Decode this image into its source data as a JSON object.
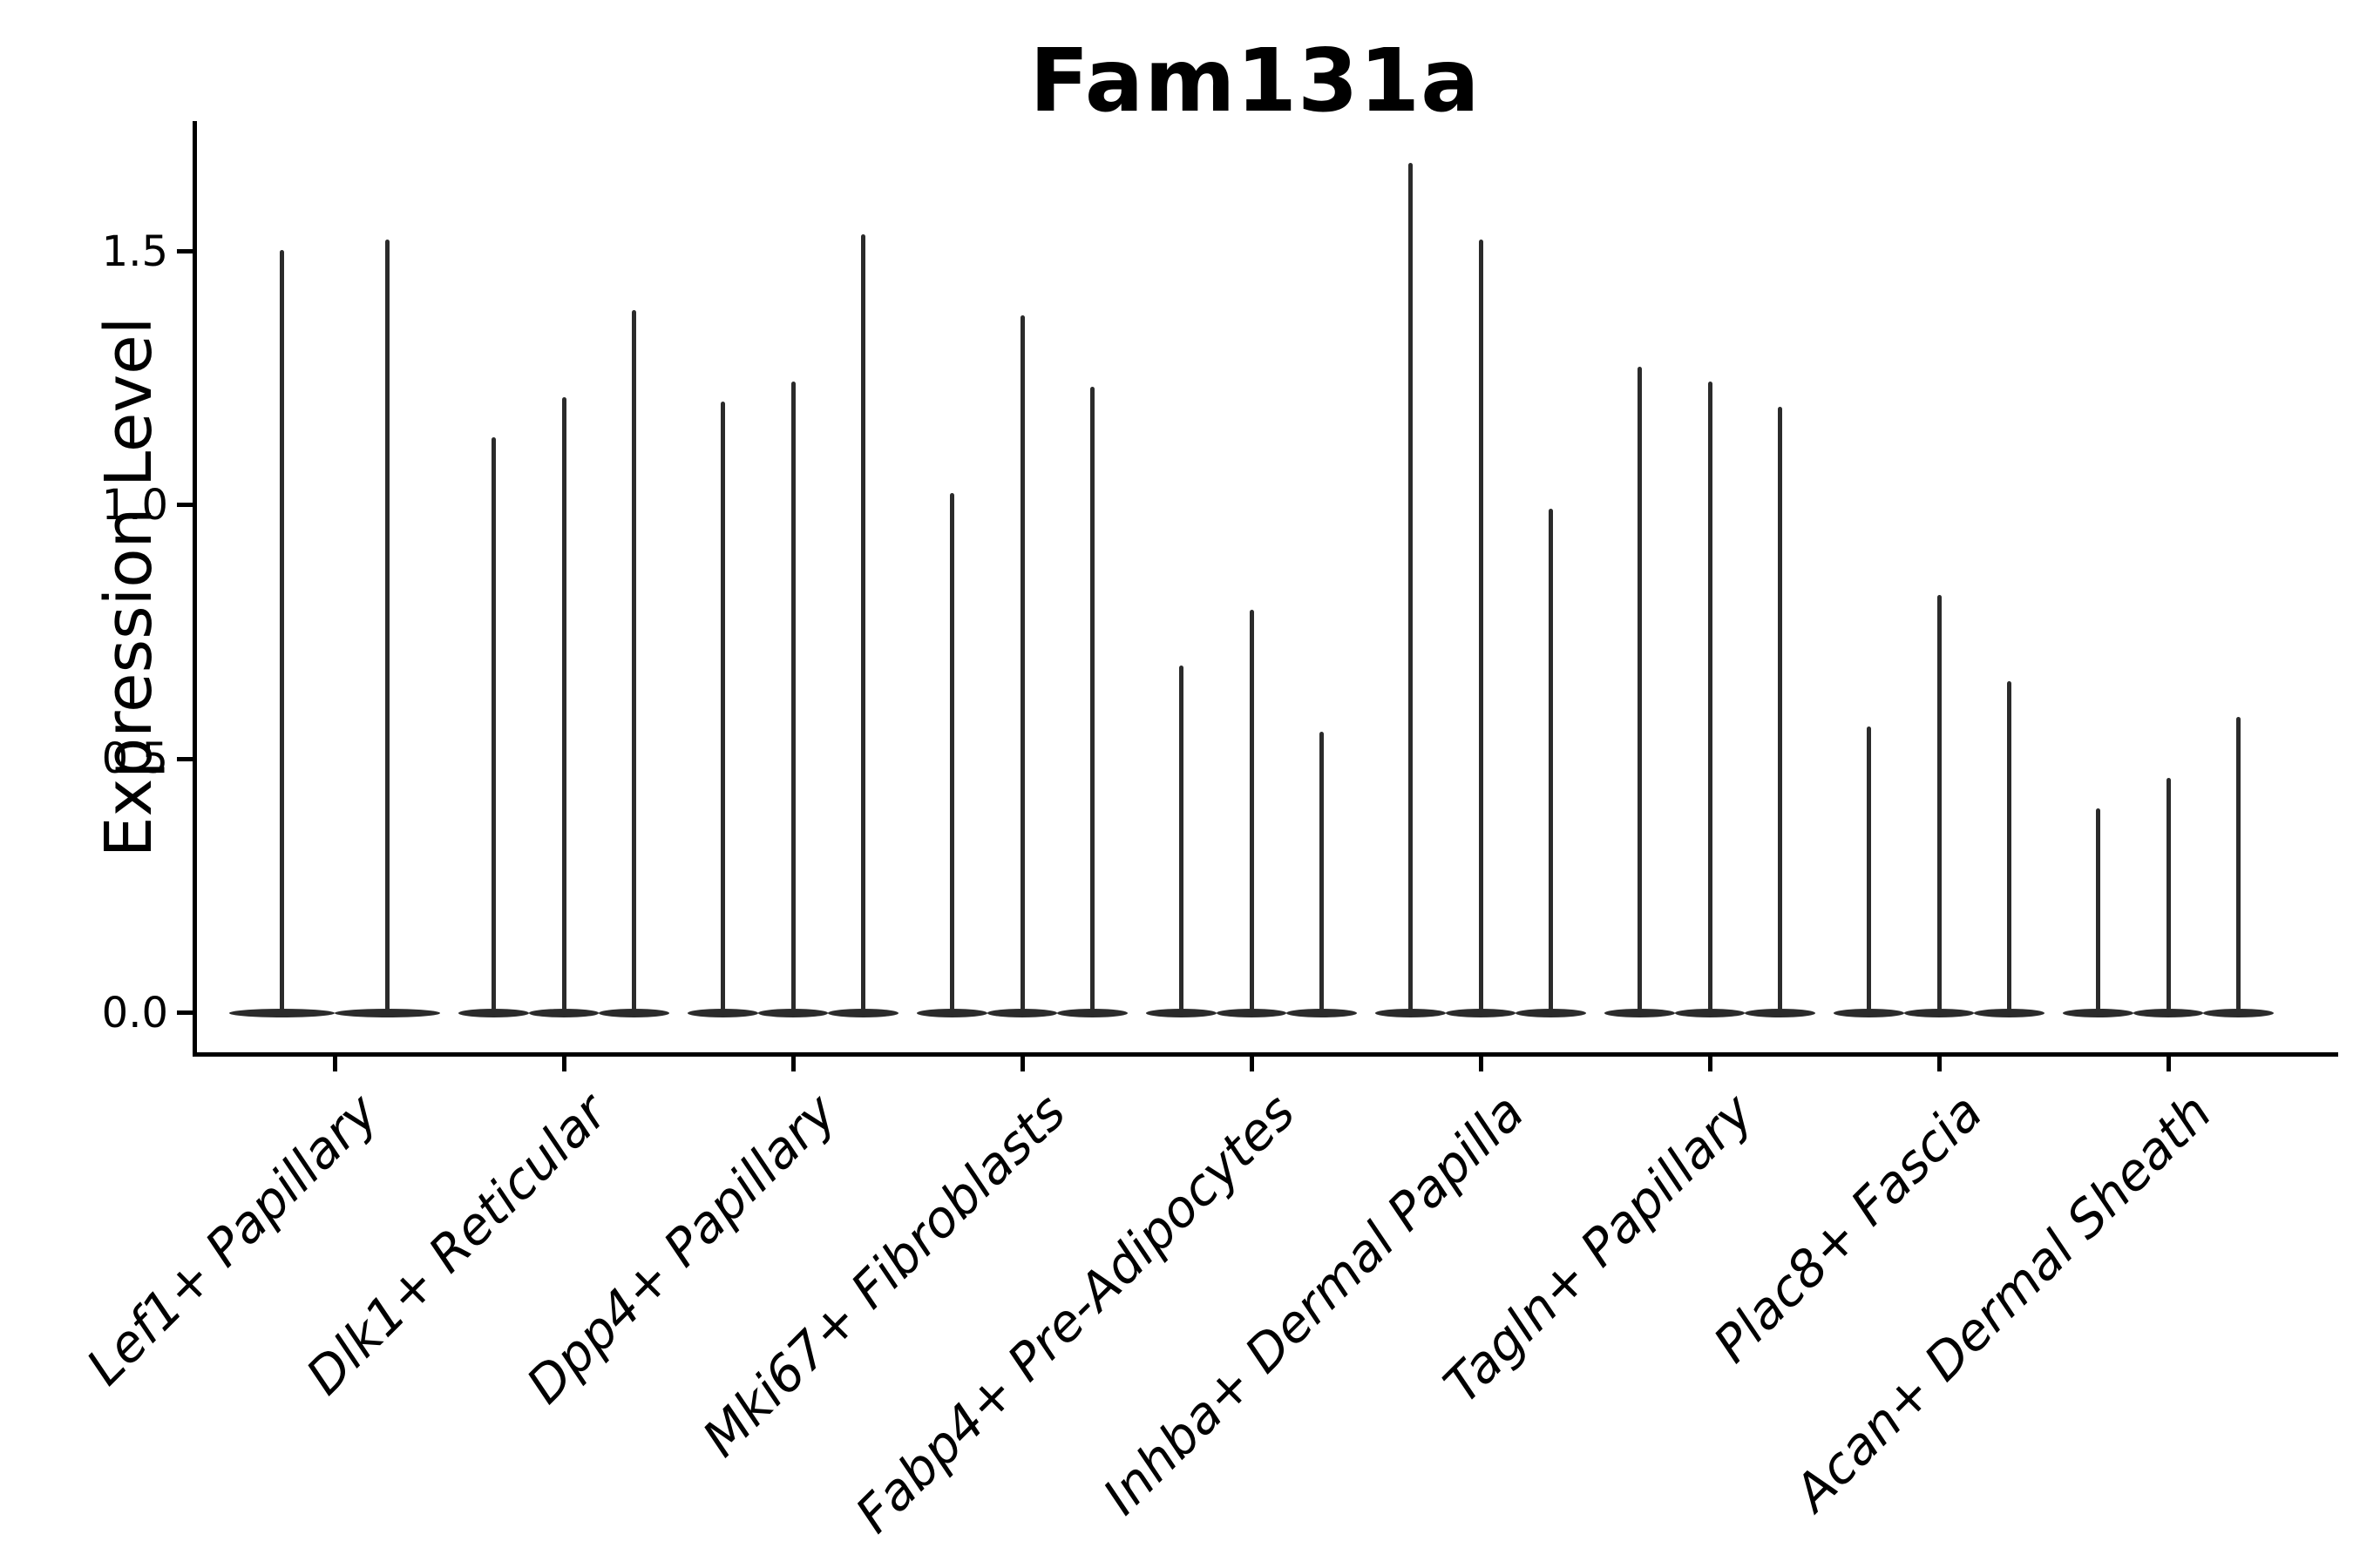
{
  "title": "Fam131a",
  "chart_data": {
    "type": "violin",
    "title": "Fam131a",
    "xlabel": "",
    "ylabel": "Expression Level",
    "ytick_labels": [
      "0.0",
      "0.5",
      "1.0",
      "1.5"
    ],
    "ytick_values": [
      0.0,
      0.5,
      1.0,
      1.5
    ],
    "ylim": [
      -0.08,
      1.76
    ],
    "grid": false,
    "legend": "none",
    "background": "#ffffff",
    "violin_color": "#2b2b2b",
    "axis_color": "#000000",
    "description": "Violin plot of single-cell expression; each category shows 2-3 needle-thin violins (flat base at 0 with a thin spike to the max value).",
    "categories": [
      "Lef1+ Papillary",
      "Dlk1+ Reticular",
      "Dpp4+ Papillary",
      "Mki67+ Fibroblasts",
      "Fabp4+ Pre-Adipocytes",
      "Inhba+ Dermal Papilla",
      "Tagln+ Papillary",
      "Plac8+ Fascia",
      "Acan+ Dermal Sheath"
    ],
    "groups": [
      {
        "label": "Lef1+ Papillary",
        "spike_maxima": [
          1.5,
          1.52
        ]
      },
      {
        "label": "Dlk1+ Reticular",
        "spike_maxima": [
          1.13,
          1.21,
          1.38
        ]
      },
      {
        "label": "Dpp4+ Papillary",
        "spike_maxima": [
          1.2,
          1.24,
          1.53
        ]
      },
      {
        "label": "Mki67+ Fibroblasts",
        "spike_maxima": [
          1.02,
          1.37,
          1.23
        ]
      },
      {
        "label": "Fabp4+ Pre-Adipocytes",
        "spike_maxima": [
          0.68,
          0.79,
          0.55
        ]
      },
      {
        "label": "Inhba+ Dermal Papilla",
        "spike_maxima": [
          1.67,
          1.52,
          0.99
        ]
      },
      {
        "label": "Tagln+ Papillary",
        "spike_maxima": [
          1.27,
          1.24,
          1.19
        ]
      },
      {
        "label": "Plac8+ Fascia",
        "spike_maxima": [
          0.56,
          0.82,
          0.65
        ]
      },
      {
        "label": "Acan+ Dermal Sheath",
        "spike_maxima": [
          0.4,
          0.46,
          0.58
        ]
      }
    ]
  }
}
